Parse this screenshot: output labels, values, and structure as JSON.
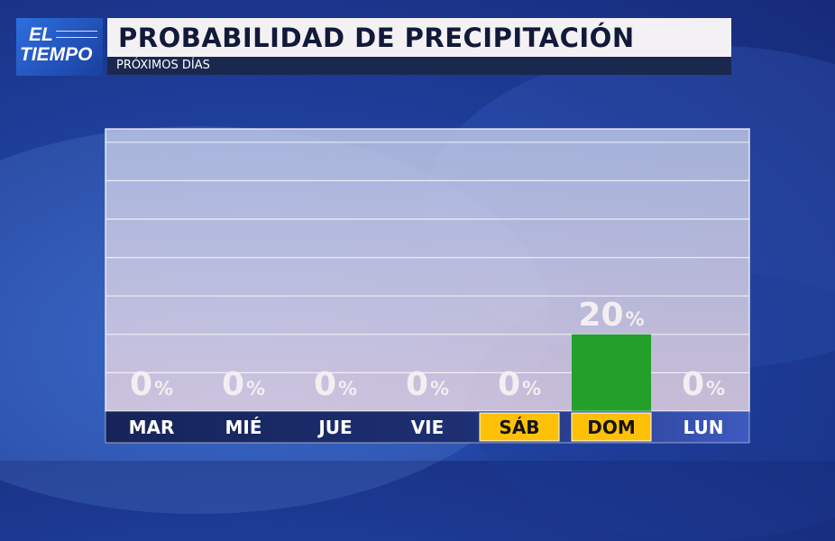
{
  "logo": {
    "line1": "EL",
    "line2": "TIEMPO"
  },
  "header": {
    "title": "PROBABILIDAD DE PRECIPITACIÓN",
    "subtitle": "PRÓXIMOS DÍAS"
  },
  "chart_data": {
    "type": "bar",
    "title": "PROBABILIDAD DE PRECIPITACIÓN",
    "subtitle": "PRÓXIMOS DÍAS",
    "categories": [
      "MAR",
      "MIÉ",
      "JUE",
      "VIE",
      "SÁB",
      "DOM",
      "LUN"
    ],
    "values": [
      0,
      0,
      0,
      0,
      0,
      20,
      0
    ],
    "unit": "%",
    "highlighted_categories": [
      "SÁB",
      "DOM"
    ],
    "ylim": [
      0,
      100
    ],
    "grid": true,
    "colors": {
      "bar": "#22a02a",
      "highlight_label_bg": "#ffc107",
      "axis_strip": "#1a2a66"
    }
  }
}
